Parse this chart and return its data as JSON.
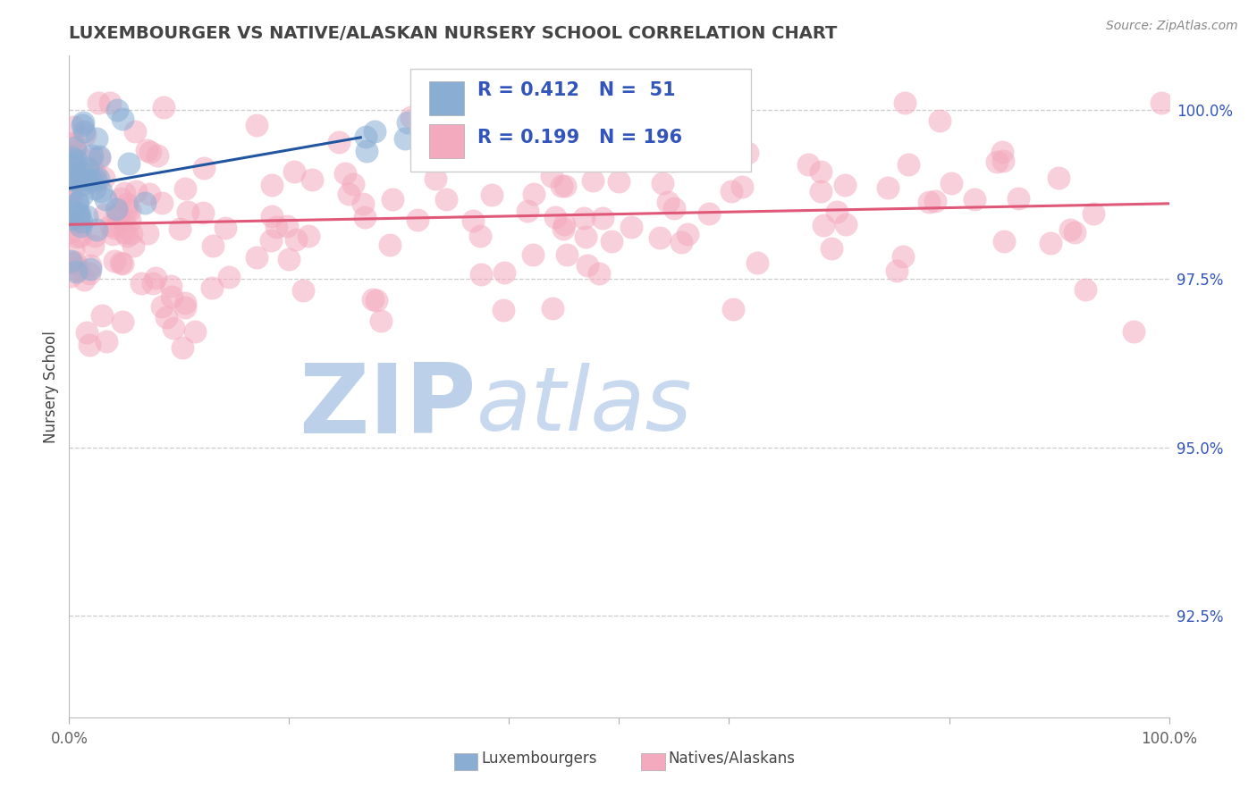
{
  "title": "LUXEMBOURGER VS NATIVE/ALASKAN NURSERY SCHOOL CORRELATION CHART",
  "source_text": "Source: ZipAtlas.com",
  "ylabel_left": "Nursery School",
  "right_ytick_labels": [
    "100.0%",
    "97.5%",
    "95.0%",
    "92.5%"
  ],
  "right_ytick_values": [
    1.0,
    0.975,
    0.95,
    0.925
  ],
  "legend_blue_r": "0.412",
  "legend_blue_n": "51",
  "legend_pink_r": "0.199",
  "legend_pink_n": "196",
  "legend_label_blue": "Luxembourgers",
  "legend_label_pink": "Natives/Alaskans",
  "blue_color": "#8AADD4",
  "pink_color": "#F4AABE",
  "blue_line_color": "#2255A0",
  "pink_line_color": "#E05878",
  "title_color": "#444444",
  "legend_text_color": "#3355BB",
  "watermark_zip_color": "#BDD0EA",
  "watermark_atlas_color": "#C8D8EE",
  "ylim_min": 0.91,
  "ylim_max": 1.008
}
